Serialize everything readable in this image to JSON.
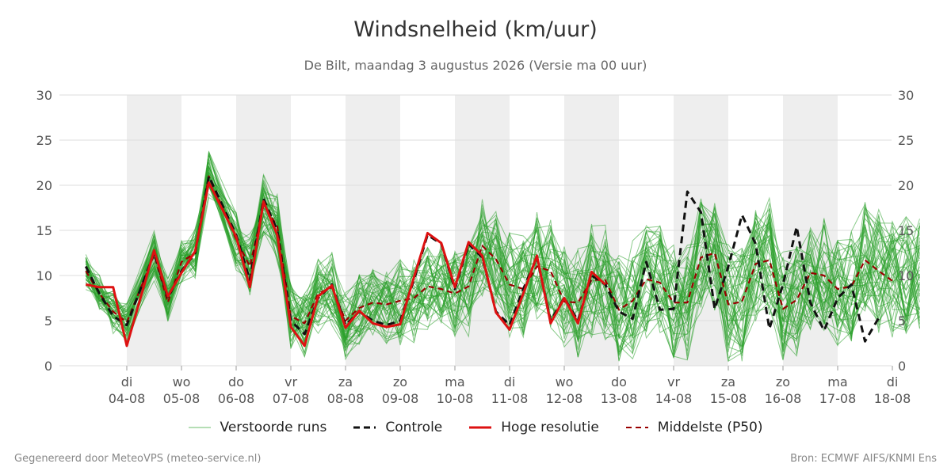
{
  "title": "Windsnelheid (km/uur)",
  "subtitle": "De Bilt, maandag  3 augustus 2026 (Versie ma 00 uur)",
  "footer": {
    "left": "Gegenereerd door MeteoVPS (meteo-service.nl)",
    "right": "Bron: ECMWF AIFS/KNMI Ens"
  },
  "colors": {
    "ensemble": "#2ca02c",
    "control": "#111111",
    "high_resolution": "#dd1111",
    "median": "#990000",
    "night_band": "#eeeeee",
    "grid": "#dddddd"
  },
  "chart_data": {
    "type": "line",
    "title": "Windsnelheid (km/uur)",
    "ylabel": "",
    "ylim": [
      0,
      30
    ],
    "yticks": [
      0,
      5,
      10,
      15,
      20,
      25,
      30
    ],
    "xlim_days": [
      -0.75,
      14.5
    ],
    "grid": "horizontal",
    "legend_position": "bottom",
    "xtick_labels": [
      {
        "day": "di",
        "date": "04-08"
      },
      {
        "day": "wo",
        "date": "05-08"
      },
      {
        "day": "do",
        "date": "06-08"
      },
      {
        "day": "vr",
        "date": "07-08"
      },
      {
        "day": "za",
        "date": "08-08"
      },
      {
        "day": "zo",
        "date": "09-08"
      },
      {
        "day": "ma",
        "date": "10-08"
      },
      {
        "day": "di",
        "date": "11-08"
      },
      {
        "day": "wo",
        "date": "12-08"
      },
      {
        "day": "do",
        "date": "13-08"
      },
      {
        "day": "vr",
        "date": "14-08"
      },
      {
        "day": "za",
        "date": "15-08"
      },
      {
        "day": "zo",
        "date": "16-08"
      },
      {
        "day": "ma",
        "date": "17-08"
      },
      {
        "day": "di",
        "date": "18-08"
      }
    ],
    "shaded_day_bands": [
      [
        0,
        1
      ],
      [
        2,
        3
      ],
      [
        4,
        5
      ],
      [
        6,
        7
      ],
      [
        8,
        9
      ],
      [
        10,
        11
      ],
      [
        12,
        13
      ]
    ],
    "legend": [
      "Verstoorde runs",
      "Controle",
      "Hoge resolutie",
      "Middelste (P50)"
    ],
    "series": [
      {
        "name": "Hoge resolutie",
        "style": "solid-thick",
        "x": [
          -0.75,
          -0.5,
          -0.25,
          0,
          0.5,
          0.75,
          1,
          1.25,
          1.5,
          2,
          2.25,
          2.5,
          2.75,
          3,
          3.25,
          3.5,
          3.75,
          4,
          4.25,
          4.5,
          4.75,
          5,
          5.25,
          5.5,
          5.75,
          6,
          6.25,
          6.5,
          6.75,
          7,
          7.25,
          7.5,
          7.75,
          8,
          8.25,
          8.5,
          8.75,
          9,
          9.25,
          9.5
        ],
        "values": [
          9.0,
          8.7,
          8.7,
          2.2,
          12.8,
          7.7,
          10.3,
          12.7,
          20.3,
          14.3,
          8.7,
          18.2,
          14.5,
          4.3,
          2.2,
          7.7,
          8.9,
          4.2,
          6.1,
          4.7,
          4.3,
          4.6,
          9.8,
          14.7,
          13.6,
          8.7,
          13.7,
          12.2,
          5.9,
          4.0,
          8.0,
          12.2,
          4.7,
          7.5,
          4.7,
          10.4,
          9.0,
          null,
          null,
          null
        ]
      },
      {
        "name": "Controle",
        "style": "dashed-black",
        "x": [
          -0.75,
          -0.5,
          -0.25,
          0,
          0.5,
          0.75,
          1,
          1.25,
          1.5,
          2,
          2.25,
          2.5,
          2.75,
          3,
          3.25,
          3.5,
          3.75,
          4,
          4.25,
          4.5,
          4.75,
          5,
          5.25,
          5.5,
          5.75,
          6,
          6.25,
          6.5,
          6.75,
          7,
          7.25,
          7.5,
          7.75,
          8,
          8.25,
          8.5,
          8.75,
          9,
          9.25,
          9.5,
          9.75,
          10,
          10.25,
          10.5,
          10.75,
          11,
          11.25,
          11.5,
          11.75,
          12,
          12.25,
          12.5,
          12.75,
          13,
          13.25,
          13.5,
          13.75,
          14,
          14.25,
          14.5
        ],
        "values": [
          11.0,
          8.0,
          5.5,
          4.5,
          12.5,
          7.5,
          10.5,
          12.5,
          21.0,
          14.5,
          9.5,
          18.5,
          15.0,
          5.0,
          3.5,
          7.5,
          9.0,
          4.5,
          6.0,
          5.0,
          4.5,
          5.0,
          9.5,
          14.5,
          13.5,
          8.5,
          13.5,
          12.0,
          6.0,
          4.5,
          8.5,
          12.0,
          5.0,
          7.5,
          5.0,
          10.0,
          9.0,
          6.0,
          5.2,
          11.5,
          6.2,
          6.3,
          19.3,
          17.0,
          6.3,
          11.0,
          16.7,
          13.5,
          4.1,
          9.0,
          15.4,
          7.0,
          3.9,
          7.5,
          9.0,
          2.7,
          5.3,
          null,
          null,
          null
        ]
      },
      {
        "name": "Middelste (P50)",
        "style": "dashed-darkred",
        "x": [
          -0.75,
          -0.5,
          -0.25,
          0,
          0.5,
          0.75,
          1,
          1.25,
          1.5,
          2,
          2.25,
          2.5,
          2.75,
          3,
          3.25,
          3.5,
          3.75,
          4,
          4.25,
          4.5,
          4.75,
          5,
          5.25,
          5.5,
          5.75,
          6,
          6.25,
          6.5,
          6.75,
          7,
          7.25,
          7.5,
          7.75,
          8,
          8.25,
          8.5,
          8.75,
          9,
          9.25,
          9.5,
          9.75,
          10,
          10.25,
          10.5,
          10.75,
          11,
          11.25,
          11.5,
          11.75,
          12,
          12.25,
          12.5,
          12.75,
          13,
          13.25,
          13.5,
          13.75,
          14,
          14.25,
          14.5
        ],
        "values": [
          10.5,
          8.0,
          6.0,
          4.8,
          12.3,
          7.0,
          11.5,
          12.5,
          21.0,
          14.0,
          11.0,
          17.8,
          15.5,
          5.5,
          4.7,
          8.0,
          8.7,
          5.0,
          6.4,
          7.0,
          6.8,
          7.2,
          7.5,
          8.8,
          8.5,
          8.0,
          8.8,
          13.3,
          11.8,
          9.0,
          8.5,
          11.0,
          10.5,
          7.1,
          7.0,
          9.5,
          9.5,
          6.2,
          7.2,
          9.6,
          9.2,
          7.0,
          7.0,
          12.0,
          12.5,
          6.8,
          7.1,
          11.3,
          11.7,
          6.3,
          7.3,
          10.3,
          10.0,
          8.5,
          8.8,
          11.7,
          10.5,
          9.4,
          null,
          null
        ]
      }
    ],
    "ensemble": {
      "name": "Verstoorde runs",
      "note": "about 50 perturbed members, thin light-green lines scattered mostly between 1 and 25 km/uur"
    }
  }
}
